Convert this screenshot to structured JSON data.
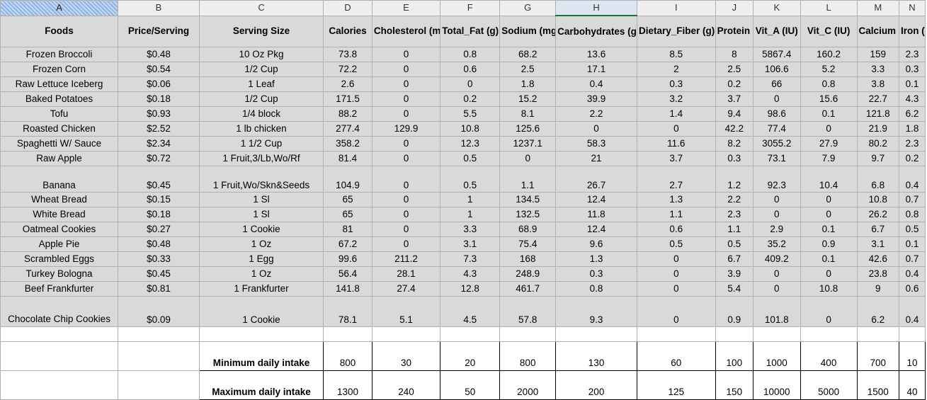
{
  "columns": [
    "A",
    "B",
    "C",
    "D",
    "E",
    "F",
    "G",
    "H",
    "I",
    "J",
    "K",
    "L",
    "M",
    "N"
  ],
  "headers": [
    "Foods",
    "Price/Serving",
    "Serving Size",
    "Calories",
    "Cholesterol (mg)",
    "Total_Fat (g)",
    "Sodium (mg)",
    "Carbohydrates (g)",
    "Dietary_Fiber (g)",
    "Protein (g)",
    "Vit_A (IU)",
    "Vit_C (IU)",
    "Calcium (mg)",
    "Iron (mg)"
  ],
  "rows": [
    [
      "Frozen Broccoli",
      "$0.48",
      "10 Oz Pkg",
      "73.8",
      "0",
      "0.8",
      "68.2",
      "13.6",
      "8.5",
      "8",
      "5867.4",
      "160.2",
      "159",
      "2.3"
    ],
    [
      "Frozen Corn",
      "$0.54",
      "1/2 Cup",
      "72.2",
      "0",
      "0.6",
      "2.5",
      "17.1",
      "2",
      "2.5",
      "106.6",
      "5.2",
      "3.3",
      "0.3"
    ],
    [
      "Raw Lettuce Iceberg",
      "$0.06",
      "1 Leaf",
      "2.6",
      "0",
      "0",
      "1.8",
      "0.4",
      "0.3",
      "0.2",
      "66",
      "0.8",
      "3.8",
      "0.1"
    ],
    [
      "Baked Potatoes",
      "$0.18",
      "1/2 Cup",
      "171.5",
      "0",
      "0.2",
      "15.2",
      "39.9",
      "3.2",
      "3.7",
      "0",
      "15.6",
      "22.7",
      "4.3"
    ],
    [
      "Tofu",
      "$0.93",
      "1/4 block",
      "88.2",
      "0",
      "5.5",
      "8.1",
      "2.2",
      "1.4",
      "9.4",
      "98.6",
      "0.1",
      "121.8",
      "6.2"
    ],
    [
      "Roasted Chicken",
      "$2.52",
      "1 lb chicken",
      "277.4",
      "129.9",
      "10.8",
      "125.6",
      "0",
      "0",
      "42.2",
      "77.4",
      "0",
      "21.9",
      "1.8"
    ],
    [
      "Spaghetti W/ Sauce",
      "$2.34",
      "1 1/2 Cup",
      "358.2",
      "0",
      "12.3",
      "1237.1",
      "58.3",
      "11.6",
      "8.2",
      "3055.2",
      "27.9",
      "80.2",
      "2.3"
    ],
    [
      "Raw Apple",
      "$0.72",
      "1 Fruit,3/Lb,Wo/Rf",
      "81.4",
      "0",
      "0.5",
      "0",
      "21",
      "3.7",
      "0.3",
      "73.1",
      "7.9",
      "9.7",
      "0.2"
    ],
    [
      "Banana",
      "$0.45",
      "1 Fruit,Wo/Skn&Seeds",
      "104.9",
      "0",
      "0.5",
      "1.1",
      "26.7",
      "2.7",
      "1.2",
      "92.3",
      "10.4",
      "6.8",
      "0.4"
    ],
    [
      "Wheat Bread",
      "$0.15",
      "1 Sl",
      "65",
      "0",
      "1",
      "134.5",
      "12.4",
      "1.3",
      "2.2",
      "0",
      "0",
      "10.8",
      "0.7"
    ],
    [
      "White Bread",
      "$0.18",
      "1 Sl",
      "65",
      "0",
      "1",
      "132.5",
      "11.8",
      "1.1",
      "2.3",
      "0",
      "0",
      "26.2",
      "0.8"
    ],
    [
      "Oatmeal Cookies",
      "$0.27",
      "1 Cookie",
      "81",
      "0",
      "3.3",
      "68.9",
      "12.4",
      "0.6",
      "1.1",
      "2.9",
      "0.1",
      "6.7",
      "0.5"
    ],
    [
      "Apple Pie",
      "$0.48",
      "1 Oz",
      "67.2",
      "0",
      "3.1",
      "75.4",
      "9.6",
      "0.5",
      "0.5",
      "35.2",
      "0.9",
      "3.1",
      "0.1"
    ],
    [
      "Scrambled Eggs",
      "$0.33",
      "1 Egg",
      "99.6",
      "211.2",
      "7.3",
      "168",
      "1.3",
      "0",
      "6.7",
      "409.2",
      "0.1",
      "42.6",
      "0.7"
    ],
    [
      "Turkey Bologna",
      "$0.45",
      "1 Oz",
      "56.4",
      "28.1",
      "4.3",
      "248.9",
      "0.3",
      "0",
      "3.9",
      "0",
      "0",
      "23.8",
      "0.4"
    ],
    [
      "Beef Frankfurter",
      "$0.81",
      "1 Frankfurter",
      "141.8",
      "27.4",
      "12.8",
      "461.7",
      "0.8",
      "0",
      "5.4",
      "0",
      "10.8",
      "9",
      "0.6"
    ],
    [
      "Chocolate Chip Cookies",
      "$0.09",
      "1 Cookie",
      "78.1",
      "5.1",
      "4.5",
      "57.8",
      "9.3",
      "0",
      "0.9",
      "101.8",
      "0",
      "6.2",
      "0.4"
    ]
  ],
  "limits": [
    {
      "label": "Minimum daily intake",
      "values": [
        "800",
        "30",
        "20",
        "800",
        "130",
        "60",
        "100",
        "1000",
        "400",
        "700",
        "10"
      ]
    },
    {
      "label": "Maximum daily intake",
      "values": [
        "1300",
        "240",
        "50",
        "2000",
        "200",
        "125",
        "150",
        "10000",
        "5000",
        "1500",
        "40"
      ]
    }
  ],
  "colors": {
    "header_fill": "#d9d9d9",
    "selected_column": "#dce6f1",
    "accent": "#217346"
  }
}
